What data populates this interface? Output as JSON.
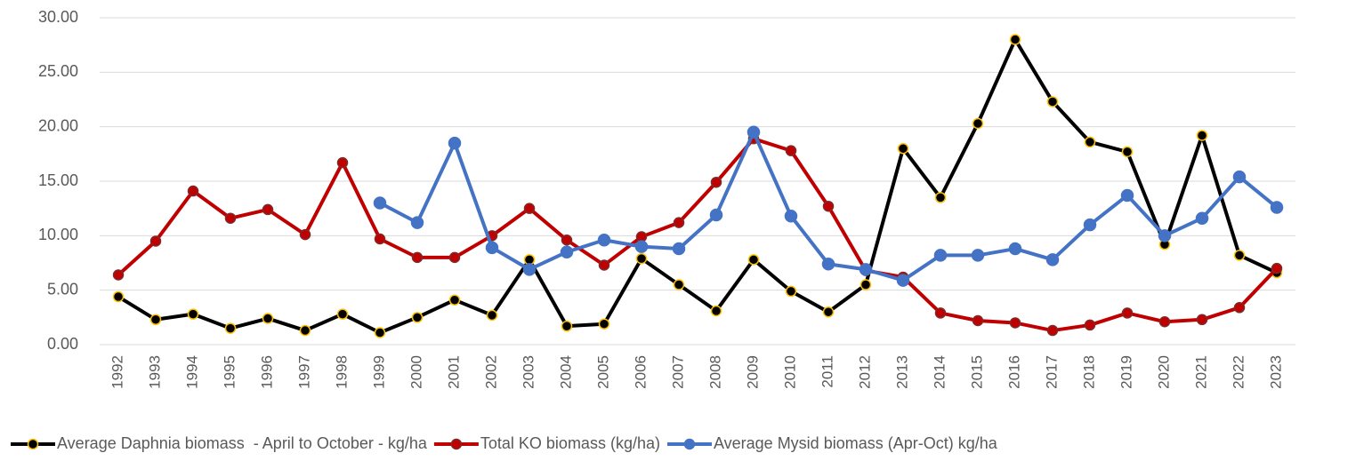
{
  "chart_data": {
    "type": "line",
    "categories": [
      "1992",
      "1993",
      "1994",
      "1995",
      "1996",
      "1997",
      "1998",
      "1999",
      "2000",
      "2001",
      "2002",
      "2003",
      "2004",
      "2005",
      "2006",
      "2007",
      "2008",
      "2009",
      "2010",
      "2011",
      "2012",
      "2013",
      "2014",
      "2015",
      "2016",
      "2017",
      "2018",
      "2019",
      "2020",
      "2021",
      "2022",
      "2023"
    ],
    "series": [
      {
        "name": "Average Daphnia biomass  - April to October - kg/ha",
        "color": "#000000",
        "marker_edge": "#FFC000",
        "values": [
          4.4,
          2.3,
          2.8,
          1.5,
          2.4,
          1.3,
          2.8,
          1.1,
          2.5,
          4.1,
          2.7,
          7.8,
          1.7,
          1.9,
          7.9,
          5.5,
          3.1,
          7.8,
          4.9,
          3.0,
          5.5,
          18.0,
          13.5,
          20.3,
          28.0,
          22.3,
          18.6,
          17.7,
          9.2,
          19.2,
          8.2,
          6.6
        ]
      },
      {
        "name": "Total KO biomass (kg/ha)",
        "color": "#C00000",
        "marker_edge": "#7F2A2A",
        "values": [
          6.4,
          9.5,
          14.1,
          11.6,
          12.4,
          10.1,
          16.7,
          9.7,
          8.0,
          8.0,
          10.0,
          12.5,
          9.6,
          7.3,
          9.9,
          11.2,
          14.9,
          18.9,
          17.8,
          12.7,
          6.8,
          6.2,
          2.9,
          2.2,
          2.0,
          1.3,
          1.8,
          2.9,
          2.1,
          2.3,
          3.4,
          7.0
        ]
      },
      {
        "name": "Average Mysid biomass (Apr-Oct) kg/ha",
        "color": "#4472C4",
        "marker_edge": "#4472C4",
        "values": [
          null,
          null,
          null,
          null,
          null,
          null,
          null,
          13.0,
          11.2,
          18.5,
          8.9,
          6.9,
          8.5,
          9.6,
          9.0,
          8.8,
          11.9,
          19.5,
          11.8,
          7.4,
          6.9,
          5.9,
          8.2,
          8.2,
          8.8,
          7.8,
          11.0,
          13.7,
          10.0,
          11.6,
          15.4,
          12.6
        ]
      }
    ],
    "ylim": [
      0,
      30
    ],
    "yticks": [
      {
        "value": 0,
        "label": "0.00"
      },
      {
        "value": 5,
        "label": "5.00"
      },
      {
        "value": 10,
        "label": "10.00"
      },
      {
        "value": 15,
        "label": "15.00"
      },
      {
        "value": 20,
        "label": "20.00"
      },
      {
        "value": 25,
        "label": "25.00"
      },
      {
        "value": 30,
        "label": "30.00"
      }
    ],
    "grid": true,
    "legend": "bottom"
  }
}
